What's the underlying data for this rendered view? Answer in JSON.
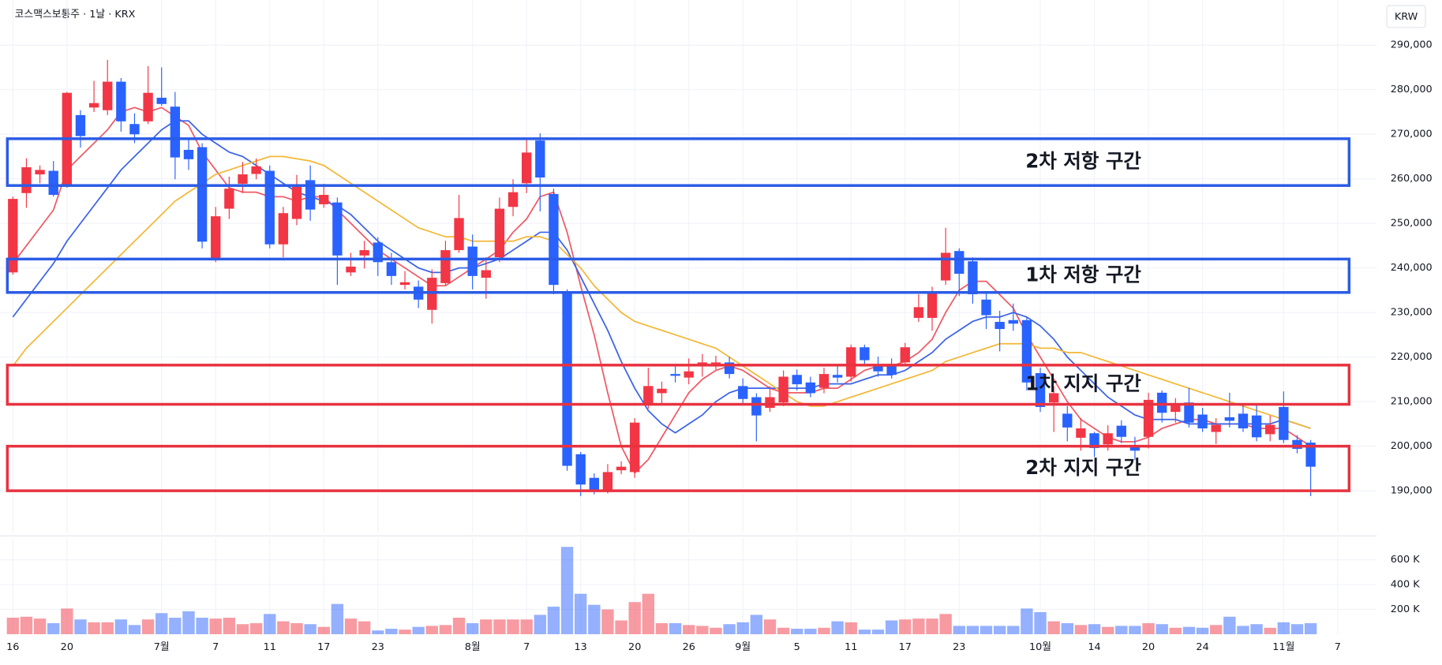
{
  "chart_data": {
    "type": "candlestick",
    "title": "코스맥스보통주 · 1날 · KRX",
    "currency": "KRW",
    "up_color": "#f23645",
    "down_color": "#2962ff",
    "grid": true,
    "categories": [
      "16",
      null,
      null,
      null,
      "20",
      null,
      null,
      null,
      null,
      null,
      null,
      "7월",
      null,
      null,
      null,
      "7",
      null,
      null,
      null,
      "11",
      null,
      null,
      null,
      "17",
      null,
      null,
      null,
      "23",
      null,
      null,
      null,
      null,
      null,
      null,
      "8월",
      null,
      null,
      null,
      "7",
      null,
      null,
      null,
      "13",
      null,
      null,
      null,
      "20",
      null,
      null,
      null,
      "26",
      null,
      null,
      null,
      "9월",
      null,
      null,
      null,
      "5",
      null,
      null,
      null,
      "11",
      null,
      null,
      null,
      "17",
      null,
      null,
      null,
      "23",
      null,
      null,
      null,
      null,
      null,
      "10월",
      null,
      null,
      null,
      "14",
      null,
      null,
      null,
      "20",
      null,
      null,
      null,
      "24",
      null,
      null,
      null,
      null,
      null,
      "11월",
      null,
      null,
      null,
      "7"
    ],
    "open": [
      239000,
      256800,
      261000,
      261800,
      258500,
      274300,
      276000,
      275400,
      281800,
      272300,
      272900,
      278200,
      276200,
      266500,
      267100,
      242000,
      253300,
      258900,
      261100,
      261800,
      245300,
      251000,
      259700,
      254300,
      254700,
      239000,
      242800,
      245700,
      241300,
      236200,
      235800,
      230600,
      236600,
      244000,
      244800,
      237800,
      242400,
      253700,
      259000,
      268600,
      256600,
      234500,
      198200,
      192900,
      190000,
      194600,
      194200,
      209400,
      211900,
      216200,
      215400,
      218000,
      218500,
      218800,
      213500,
      211000,
      208600,
      209800,
      216000,
      214300,
      213100,
      216000,
      215600,
      222200,
      218000,
      218000,
      218800,
      228800,
      228800,
      237200,
      243800,
      241500,
      232900,
      227900,
      228300,
      228300,
      216400,
      209800,
      207300,
      201900,
      202900,
      200400,
      204600,
      200200,
      202100,
      212000,
      207700,
      209800,
      207100,
      203200,
      206500,
      207300,
      206900,
      202700,
      208800,
      201400,
      200800,
      null,
      null
    ],
    "high": [
      256000,
      264600,
      263000,
      264000,
      279500,
      275400,
      282000,
      286700,
      282600,
      274700,
      285300,
      285000,
      279500,
      269200,
      268000,
      253700,
      260500,
      263800,
      264600,
      263000,
      253700,
      260900,
      263000,
      258900,
      255800,
      243400,
      246100,
      246900,
      243400,
      239300,
      237200,
      239700,
      246100,
      256400,
      247500,
      242400,
      255800,
      259900,
      269200,
      270200,
      257800,
      235200,
      198700,
      193900,
      196000,
      196600,
      206300,
      217600,
      214500,
      218000,
      219700,
      220700,
      220300,
      220100,
      215200,
      211900,
      213500,
      217000,
      217200,
      215600,
      217600,
      218000,
      222800,
      222800,
      220100,
      219700,
      223200,
      234100,
      235800,
      249000,
      244400,
      242400,
      234500,
      230400,
      232000,
      229000,
      217600,
      213500,
      209000,
      206300,
      203200,
      204700,
      205800,
      202100,
      212000,
      212500,
      210800,
      213100,
      208600,
      206300,
      212000,
      209200,
      209200,
      206900,
      212300,
      202500,
      201400,
      null,
      null
    ],
    "low": [
      238500,
      253500,
      259000,
      256000,
      258000,
      267000,
      275000,
      274300,
      270600,
      268000,
      272300,
      276400,
      259900,
      262000,
      244400,
      241300,
      251000,
      256800,
      259900,
      244400,
      242400,
      249600,
      250600,
      253500,
      236200,
      238200,
      239900,
      238200,
      236200,
      235200,
      231000,
      227500,
      236200,
      243400,
      235200,
      233100,
      241300,
      251600,
      256800,
      252700,
      234100,
      194500,
      188800,
      189200,
      189400,
      193700,
      192900,
      208400,
      209400,
      214300,
      213900,
      215600,
      217200,
      215200,
      209400,
      201100,
      207700,
      209000,
      212500,
      211000,
      211900,
      214300,
      214500,
      218000,
      215600,
      215200,
      218000,
      227900,
      225900,
      236200,
      233700,
      232000,
      226300,
      221300,
      225900,
      212500,
      207700,
      203200,
      201100,
      199000,
      197600,
      199000,
      200700,
      196900,
      199500,
      205300,
      205300,
      204200,
      203200,
      200500,
      204200,
      203200,
      201100,
      201100,
      200700,
      198400,
      188800,
      null,
      null
    ],
    "close": [
      255500,
      262600,
      262000,
      256400,
      279300,
      269600,
      277000,
      281800,
      272900,
      270000,
      279300,
      276800,
      264800,
      264400,
      245900,
      251600,
      257800,
      261000,
      262800,
      245300,
      252300,
      258200,
      253100,
      256400,
      242800,
      240300,
      244000,
      241300,
      238200,
      236800,
      232900,
      237800,
      244000,
      251200,
      238200,
      239500,
      253300,
      257000,
      265900,
      260300,
      236200,
      195600,
      191400,
      190000,
      194200,
      195400,
      205300,
      213500,
      212900,
      215800,
      216800,
      218800,
      218800,
      216200,
      210600,
      206900,
      211000,
      215600,
      213900,
      211900,
      216200,
      215400,
      222200,
      219300,
      216800,
      216000,
      222200,
      231200,
      234500,
      243400,
      238700,
      234100,
      229400,
      226300,
      227500,
      214300,
      208800,
      211900,
      204200,
      204000,
      199600,
      202900,
      202100,
      199000,
      210400,
      207500,
      209200,
      205300,
      204000,
      204800,
      205700,
      204000,
      202000,
      204800,
      201400,
      199400,
      195400,
      null,
      null
    ],
    "volume": [
      133000,
      141000,
      126000,
      89000,
      207000,
      119000,
      96000,
      96000,
      119000,
      74000,
      119000,
      170000,
      133000,
      185000,
      133000,
      126000,
      133000,
      81000,
      89000,
      163000,
      104000,
      89000,
      81000,
      59000,
      244000,
      126000,
      104000,
      30000,
      44000,
      37000,
      59000,
      67000,
      74000,
      133000,
      89000,
      119000,
      119000,
      119000,
      119000,
      156000,
      222000,
      704000,
      326000,
      237000,
      200000,
      111000,
      259000,
      326000,
      89000,
      89000,
      74000,
      67000,
      52000,
      81000,
      96000,
      156000,
      119000,
      52000,
      44000,
      44000,
      52000,
      104000,
      96000,
      37000,
      37000,
      111000,
      119000,
      126000,
      126000,
      163000,
      67000,
      67000,
      67000,
      67000,
      67000,
      207000,
      178000,
      104000,
      89000,
      74000,
      81000,
      59000,
      67000,
      67000,
      89000,
      81000,
      52000,
      59000,
      52000,
      74000,
      141000,
      67000,
      81000,
      52000,
      96000,
      81000,
      89000,
      null,
      null
    ],
    "moving_averages": [
      {
        "color": "#ef5a66",
        "values": [
          241000,
          245000,
          249000,
          253000,
          262000,
          265000,
          268000,
          271000,
          275000,
          276000,
          275000,
          276000,
          274000,
          272000,
          266000,
          262000,
          258000,
          257000,
          257000,
          256000,
          256000,
          255000,
          256000,
          256000,
          253000,
          250000,
          247000,
          244000,
          242000,
          240000,
          238000,
          236000,
          236000,
          238000,
          240000,
          242000,
          244000,
          248000,
          251000,
          256000,
          257000,
          248000,
          236000,
          225000,
          212000,
          200000,
          194000,
          197000,
          202000,
          207000,
          212000,
          215000,
          217000,
          218000,
          217000,
          215000,
          213000,
          212000,
          212000,
          212000,
          213000,
          213000,
          215000,
          217000,
          218000,
          218000,
          219000,
          221000,
          224000,
          230000,
          235000,
          237000,
          237000,
          234000,
          231000,
          225000,
          220000,
          215000,
          210000,
          206000,
          204000,
          202000,
          201000,
          201000,
          202000,
          204000,
          205000,
          206000,
          206000,
          205000,
          205000,
          205000,
          204000,
          204000,
          204000,
          202000,
          200000,
          null,
          null
        ]
      },
      {
        "color": "#3b63e8",
        "values": [
          229000,
          233000,
          237000,
          241000,
          246000,
          250000,
          254000,
          258000,
          262000,
          265000,
          268000,
          271000,
          273000,
          273000,
          270000,
          268000,
          266000,
          265000,
          263000,
          261000,
          259000,
          257000,
          256000,
          255000,
          254000,
          252000,
          249000,
          246000,
          244000,
          242000,
          240000,
          239000,
          239000,
          240000,
          240000,
          241000,
          242000,
          244000,
          246000,
          248000,
          248000,
          244000,
          238000,
          232000,
          226000,
          219000,
          213000,
          208000,
          205000,
          203000,
          205000,
          207000,
          210000,
          212000,
          213000,
          213000,
          213000,
          213000,
          213000,
          213000,
          214000,
          214000,
          214000,
          215000,
          216000,
          216000,
          217000,
          219000,
          221000,
          224000,
          226000,
          228000,
          229000,
          229000,
          230000,
          229000,
          227000,
          224000,
          220000,
          217000,
          214000,
          211000,
          209000,
          207000,
          206000,
          206000,
          206000,
          205000,
          205000,
          205000,
          205000,
          205000,
          205000,
          205000,
          206000,
          205000,
          204000,
          null,
          null
        ]
      },
      {
        "color": "#f3b838",
        "values": [
          218000,
          222000,
          225000,
          228000,
          231000,
          234000,
          237000,
          240000,
          243000,
          246000,
          249000,
          252000,
          255000,
          257000,
          259000,
          261000,
          262000,
          263000,
          264000,
          265000,
          265000,
          264500,
          264000,
          263000,
          261000,
          259000,
          257000,
          255000,
          253000,
          251000,
          249000,
          248000,
          247000,
          247000,
          246000,
          246000,
          246000,
          246000,
          247000,
          247000,
          246000,
          243000,
          240000,
          236000,
          233000,
          230000,
          228000,
          227000,
          226000,
          225000,
          224000,
          223000,
          222000,
          220000,
          218000,
          216000,
          214000,
          212000,
          210000,
          209000,
          209000,
          210000,
          211000,
          212000,
          213000,
          214000,
          215000,
          216000,
          217000,
          219000,
          220000,
          221000,
          222000,
          223000,
          223000,
          223000,
          222000,
          222000,
          221000,
          221000,
          220000,
          219000,
          218000,
          217000,
          216000,
          215000,
          214000,
          213000,
          212000,
          211000,
          210000,
          209000,
          208000,
          207000,
          206000,
          205000,
          204000,
          null,
          null
        ]
      }
    ],
    "zones": [
      {
        "label": "2차 저항 구간",
        "top": 269000,
        "bottom": 258500,
        "color": "#2b5ce6"
      },
      {
        "label": "1차 저항 구간",
        "top": 242000,
        "bottom": 234500,
        "color": "#2b5ce6"
      },
      {
        "label": "1차 지지 구간",
        "top": 218200,
        "bottom": 209400,
        "color": "#e8323f"
      },
      {
        "label": "2차 지지 구간",
        "top": 200000,
        "bottom": 190000,
        "color": "#e8323f"
      }
    ],
    "ylim": [
      180500,
      299100
    ],
    "yticks": [
      {
        "value": 190000,
        "label": "190,000"
      },
      {
        "value": 200000,
        "label": "200,000"
      },
      {
        "value": 210000,
        "label": "210,000"
      },
      {
        "value": 220000,
        "label": "220,000"
      },
      {
        "value": 230000,
        "label": "230,000"
      },
      {
        "value": 240000,
        "label": "240,000"
      },
      {
        "value": 250000,
        "label": "250,000"
      },
      {
        "value": 260000,
        "label": "260,000"
      },
      {
        "value": 270000,
        "label": "270,000"
      },
      {
        "value": 280000,
        "label": "280,000"
      },
      {
        "value": 290000,
        "label": "290,000"
      }
    ],
    "volume_ylim": [
      0,
      778000
    ],
    "volume_yticks": [
      {
        "value": 200000,
        "label": "200 K"
      },
      {
        "value": 400000,
        "label": "400 K"
      },
      {
        "value": 600000,
        "label": "600 K"
      }
    ]
  }
}
